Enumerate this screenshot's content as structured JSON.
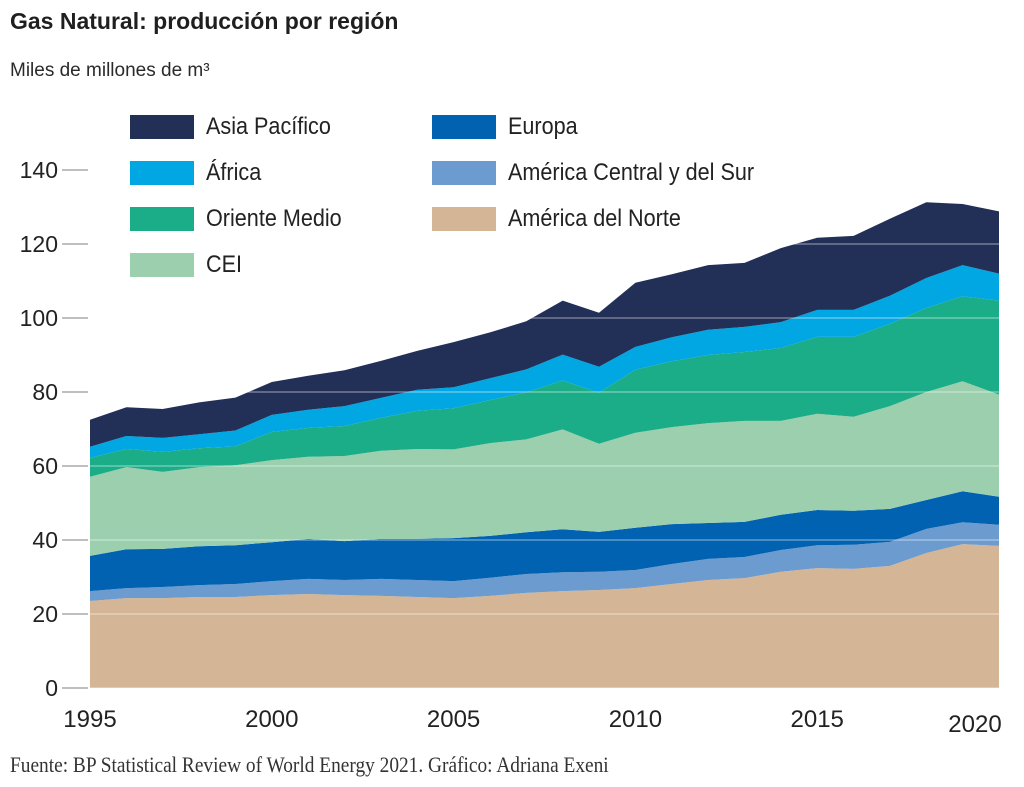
{
  "header": {
    "title": "Gas Natural: producción por región",
    "subtitle": "Miles de millones de m³"
  },
  "footer": {
    "source": "Fuente: BP Statistical Review of  World Energy 2021. Gráfico: Adriana Exeni"
  },
  "chart_data": {
    "type": "area",
    "stacked": true,
    "title": "Gas Natural: producción por región",
    "ylabel": "Miles de millones de m³",
    "xlabel": "",
    "ylim": [
      0,
      140
    ],
    "yticks": [
      0,
      20,
      40,
      60,
      80,
      100,
      120,
      140
    ],
    "xticks": [
      1995,
      2000,
      2005,
      2010,
      2015,
      2020
    ],
    "grid": true,
    "legend_position": "top-left",
    "x": [
      1995,
      1996,
      1997,
      1998,
      1999,
      2000,
      2001,
      2002,
      2003,
      2004,
      2005,
      2006,
      2007,
      2008,
      2009,
      2010,
      2011,
      2012,
      2013,
      2014,
      2015,
      2016,
      2017,
      2018,
      2019,
      2020
    ],
    "series": [
      {
        "name": "América del Norte",
        "color": "#D4B696",
        "values": [
          23.5,
          24.3,
          24.3,
          24.6,
          24.6,
          25.1,
          25.4,
          25.1,
          24.9,
          24.6,
          24.3,
          24.9,
          25.7,
          26.2,
          26.5,
          27.0,
          28.1,
          29.2,
          29.7,
          31.4,
          32.4,
          32.2,
          33.0,
          36.5,
          38.9,
          38.4
        ]
      },
      {
        "name": "América Central y del Sur",
        "color": "#6C9BCF",
        "values": [
          2.7,
          2.7,
          3.0,
          3.2,
          3.5,
          3.8,
          4.1,
          4.1,
          4.6,
          4.6,
          4.6,
          4.9,
          5.1,
          5.1,
          4.9,
          4.9,
          5.4,
          5.7,
          5.7,
          5.9,
          6.2,
          6.5,
          6.5,
          6.5,
          5.9,
          5.7
        ]
      },
      {
        "name": "Europa",
        "color": "#0062B0",
        "values": [
          9.5,
          10.5,
          10.3,
          10.5,
          10.5,
          10.5,
          10.8,
          10.5,
          10.8,
          11.1,
          11.6,
          11.3,
          11.3,
          11.6,
          10.8,
          11.4,
          10.8,
          9.7,
          9.5,
          9.5,
          9.5,
          9.2,
          8.9,
          7.8,
          8.4,
          7.6
        ]
      },
      {
        "name": "CEI",
        "color": "#9BCFAD",
        "values": [
          21.4,
          22.2,
          20.8,
          21.4,
          21.6,
          22.2,
          22.2,
          23.0,
          23.8,
          24.3,
          24.0,
          25.1,
          25.1,
          27.0,
          23.8,
          25.7,
          26.2,
          27.0,
          27.3,
          25.4,
          26.0,
          25.4,
          27.8,
          29.2,
          29.7,
          27.6
        ]
      },
      {
        "name": "Oriente Medio",
        "color": "#1BAD88",
        "values": [
          5.1,
          4.9,
          5.4,
          5.1,
          5.1,
          7.6,
          7.8,
          8.1,
          8.9,
          10.3,
          11.1,
          11.6,
          12.7,
          13.2,
          13.8,
          17.0,
          17.8,
          18.4,
          18.6,
          19.7,
          20.8,
          21.6,
          22.2,
          22.7,
          23.0,
          25.4
        ]
      },
      {
        "name": "África",
        "color": "#00A7E3",
        "values": [
          3.0,
          3.5,
          3.8,
          3.8,
          4.3,
          4.6,
          4.9,
          5.4,
          5.4,
          5.7,
          5.7,
          5.9,
          6.2,
          7.0,
          7.0,
          6.2,
          6.5,
          6.8,
          6.8,
          7.0,
          7.3,
          7.3,
          7.6,
          8.1,
          8.4,
          7.3
        ]
      },
      {
        "name": "Asia Pacífico",
        "color": "#222F57",
        "values": [
          7.3,
          7.8,
          7.8,
          8.6,
          8.9,
          8.9,
          9.2,
          9.7,
          10.0,
          10.5,
          12.2,
          12.4,
          13.0,
          14.6,
          14.6,
          17.3,
          17.0,
          17.5,
          17.3,
          20.0,
          19.5,
          20.0,
          20.8,
          20.5,
          16.5,
          16.8
        ]
      }
    ]
  }
}
